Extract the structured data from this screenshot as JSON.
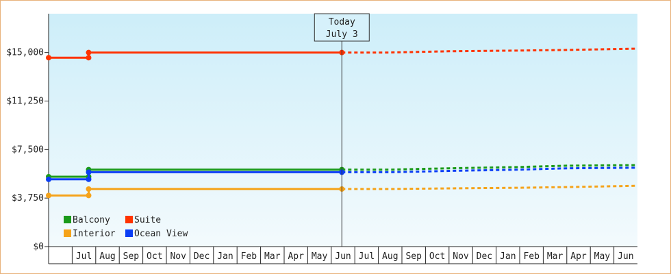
{
  "chart_data": {
    "type": "line",
    "y_range": [
      0,
      18000
    ],
    "y_ticks": [
      {
        "value": 0,
        "label": "$0"
      },
      {
        "value": 3750,
        "label": "$3,750"
      },
      {
        "value": 7500,
        "label": "$7,500"
      },
      {
        "value": 11250,
        "label": "$11,250"
      },
      {
        "value": 15000,
        "label": "$15,000"
      }
    ],
    "x_range": [
      0,
      25
    ],
    "months": [
      "Jul",
      "Aug",
      "Sep",
      "Oct",
      "Nov",
      "Dec",
      "Jan",
      "Feb",
      "Mar",
      "Apr",
      "May",
      "Jun",
      "Jul",
      "Aug",
      "Sep",
      "Oct",
      "Nov",
      "Dec",
      "Jan",
      "Feb",
      "Mar",
      "Apr",
      "May",
      "Jun"
    ],
    "today": {
      "x": 12.45,
      "label_line1": "Today",
      "label_line2": "July 3"
    },
    "grid": false,
    "legend_position": "bottom-left",
    "series": [
      {
        "name": "Balcony",
        "color": "#1a9a1a",
        "actual": [
          [
            0,
            5400
          ],
          [
            1.7,
            5400
          ],
          [
            1.7,
            5950
          ],
          [
            12.45,
            5950
          ]
        ],
        "forecast": [
          [
            12.45,
            5950
          ],
          [
            14.5,
            5950
          ],
          [
            17,
            6050
          ],
          [
            20,
            6150
          ],
          [
            22,
            6250
          ],
          [
            25,
            6300
          ]
        ]
      },
      {
        "name": "Suite",
        "color": "#ff3300",
        "actual": [
          [
            0,
            14600
          ],
          [
            1.7,
            14600
          ],
          [
            1.7,
            15000
          ],
          [
            12.45,
            15000
          ]
        ],
        "forecast": [
          [
            12.45,
            15000
          ],
          [
            14.5,
            15000
          ],
          [
            17,
            15100
          ],
          [
            20,
            15150
          ],
          [
            22,
            15200
          ],
          [
            25,
            15300
          ]
        ]
      },
      {
        "name": "Interior",
        "color": "#f5a31a",
        "actual": [
          [
            0,
            3950
          ],
          [
            1.7,
            3950
          ],
          [
            1.7,
            4450
          ],
          [
            12.45,
            4450
          ]
        ],
        "forecast": [
          [
            12.45,
            4450
          ],
          [
            14.5,
            4450
          ],
          [
            17,
            4500
          ],
          [
            20,
            4550
          ],
          [
            22,
            4600
          ],
          [
            25,
            4700
          ]
        ]
      },
      {
        "name": "Ocean View",
        "color": "#0b3ef5",
        "actual": [
          [
            0,
            5200
          ],
          [
            1.7,
            5200
          ],
          [
            1.7,
            5750
          ],
          [
            12.45,
            5750
          ]
        ],
        "forecast": [
          [
            12.45,
            5750
          ],
          [
            14.5,
            5750
          ],
          [
            17,
            5850
          ],
          [
            20,
            5950
          ],
          [
            22,
            6050
          ],
          [
            25,
            6100
          ]
        ]
      }
    ],
    "legend_order": [
      "Balcony",
      "Suite",
      "Interior",
      "Ocean View"
    ],
    "background_top": "#cdeef9",
    "background_bottom": "#f3fafd"
  }
}
